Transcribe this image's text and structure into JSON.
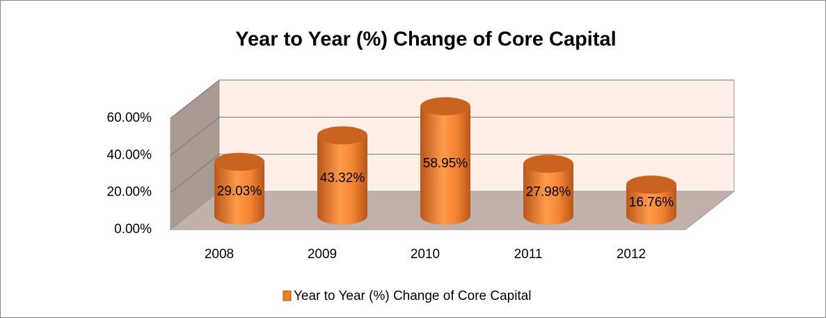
{
  "chart_data": {
    "type": "bar3d",
    "title": "Year to Year (%) Change of Core Capital",
    "categories": [
      "2008",
      "2009",
      "2010",
      "2011",
      "2012"
    ],
    "series": [
      {
        "name": "Year to Year (%) Change of Core Capital",
        "color": "#f07f24",
        "values": [
          29.03,
          43.32,
          58.95,
          27.98,
          16.76
        ],
        "value_labels": [
          "29.03%",
          "43.32%",
          "58.95%",
          "27.98%",
          "16.76%"
        ]
      }
    ],
    "ylim": [
      0,
      60
    ],
    "yticks": [
      {
        "value": 0,
        "label": "0.00%"
      },
      {
        "value": 20,
        "label": "20.00%"
      },
      {
        "value": 40,
        "label": "40.00%"
      },
      {
        "value": 60,
        "label": "60.00%"
      }
    ],
    "grid": true,
    "legend": "bottom"
  }
}
